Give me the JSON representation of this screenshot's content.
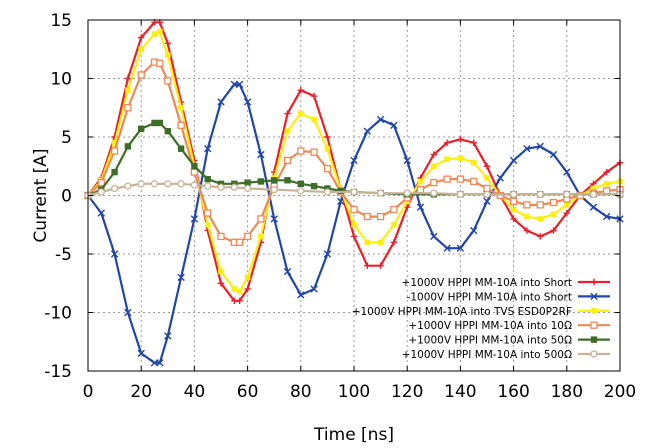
{
  "chart_data": {
    "type": "line",
    "title": "",
    "xlabel": "Time [ns]",
    "ylabel": "Current [A]",
    "xlim": [
      0,
      200
    ],
    "ylim": [
      -15,
      15
    ],
    "xticks": [
      0,
      20,
      40,
      60,
      80,
      100,
      120,
      140,
      160,
      180,
      200
    ],
    "yticks": [
      -15,
      -10,
      -5,
      0,
      5,
      10,
      15
    ],
    "grid": true,
    "legend_position": "bottom-right",
    "series": [
      {
        "name": "+1000V HPPI MM-10A into Short",
        "color": "#e8202a",
        "marker": "plus",
        "x": [
          0,
          5,
          10,
          15,
          20,
          25,
          27,
          30,
          35,
          40,
          45,
          50,
          55,
          57,
          60,
          65,
          70,
          75,
          80,
          85,
          90,
          95,
          100,
          105,
          110,
          115,
          120,
          125,
          130,
          135,
          140,
          145,
          150,
          155,
          160,
          165,
          170,
          175,
          180,
          185,
          190,
          195,
          200
        ],
        "y": [
          0,
          1.5,
          5,
          10,
          13.5,
          14.8,
          14.8,
          13,
          8,
          3,
          -3,
          -7.5,
          -9,
          -9,
          -8,
          -4,
          2,
          7,
          9,
          8.5,
          5,
          0.5,
          -3.5,
          -6,
          -6,
          -4,
          -1,
          1.5,
          3.5,
          4.5,
          4.8,
          4.5,
          2.5,
          0,
          -2,
          -3,
          -3.5,
          -3,
          -1.5,
          0,
          1,
          2,
          2.8
        ]
      },
      {
        "name": "-1000V HPPI MM-10A into Short",
        "color": "#2145a8",
        "marker": "x",
        "x": [
          0,
          5,
          10,
          15,
          20,
          25,
          27,
          30,
          35,
          40,
          45,
          50,
          55,
          57,
          60,
          65,
          70,
          75,
          80,
          85,
          90,
          95,
          100,
          105,
          110,
          115,
          120,
          125,
          130,
          135,
          140,
          145,
          150,
          155,
          160,
          165,
          170,
          175,
          180,
          185,
          190,
          195,
          200
        ],
        "y": [
          0,
          -1.5,
          -5,
          -10,
          -13.5,
          -14.3,
          -14.3,
          -12,
          -7,
          -2,
          4,
          8,
          9.5,
          9.5,
          8,
          3.5,
          -2,
          -6.5,
          -8.5,
          -8,
          -5,
          -0.5,
          3,
          5.5,
          6.5,
          6,
          3,
          -1,
          -3.5,
          -4.5,
          -4.5,
          -3,
          -0.5,
          1.5,
          3,
          4,
          4.2,
          3.5,
          2,
          0,
          -1,
          -1.8,
          -2
        ]
      },
      {
        "name": "+1000V HPPI MM-10A into TVS ESD0P2RF",
        "color": "#fcee0f",
        "marker": "square",
        "x": [
          0,
          5,
          10,
          15,
          20,
          25,
          27,
          30,
          35,
          40,
          45,
          50,
          55,
          57,
          60,
          65,
          70,
          75,
          80,
          85,
          90,
          95,
          100,
          105,
          110,
          115,
          120,
          125,
          130,
          135,
          140,
          145,
          150,
          155,
          160,
          165,
          170,
          175,
          180,
          185,
          190,
          195,
          200
        ],
        "y": [
          0,
          1.3,
          4.5,
          9,
          12.5,
          13.8,
          14,
          12,
          7.5,
          2.5,
          -2.5,
          -6.5,
          -8,
          -8.2,
          -7,
          -3.5,
          1.5,
          5.5,
          7,
          6.5,
          4,
          0.5,
          -2.5,
          -4,
          -4,
          -2.5,
          -0.5,
          1.2,
          2.5,
          3.1,
          3.2,
          2.8,
          1.5,
          0,
          -1.2,
          -1.8,
          -2,
          -1.6,
          -0.8,
          0,
          0.6,
          1,
          1.2
        ]
      },
      {
        "name": "+1000V HPPI MM-10A into 10Ω",
        "color": "#ee8855",
        "marker": "open-square",
        "x": [
          0,
          5,
          10,
          15,
          20,
          25,
          27,
          30,
          35,
          40,
          45,
          50,
          55,
          57,
          60,
          65,
          70,
          75,
          80,
          85,
          90,
          95,
          100,
          105,
          110,
          115,
          120,
          125,
          130,
          135,
          140,
          145,
          150,
          155,
          160,
          165,
          170,
          175,
          180,
          185,
          190,
          195,
          200
        ],
        "y": [
          0,
          1.1,
          3.8,
          7.5,
          10.3,
          11.4,
          11.3,
          9.8,
          6,
          2,
          -1.5,
          -3.5,
          -4,
          -4,
          -3.5,
          -2,
          0.8,
          3,
          3.8,
          3.7,
          2.3,
          0.3,
          -1.2,
          -1.8,
          -1.8,
          -1.2,
          -0.2,
          0.5,
          1.1,
          1.4,
          1.4,
          1.2,
          0.6,
          0,
          -0.5,
          -0.8,
          -0.8,
          -0.6,
          -0.3,
          0,
          0.2,
          0.4,
          0.5
        ]
      },
      {
        "name": "+1000V HPPI MM-10A into 50Ω",
        "color": "#3d6e27",
        "marker": "filled-square",
        "x": [
          0,
          5,
          10,
          15,
          20,
          25,
          27,
          30,
          35,
          40,
          45,
          50,
          55,
          60,
          65,
          70,
          75,
          80,
          85,
          90,
          95,
          100,
          110,
          120,
          130,
          140,
          150,
          160,
          170,
          180,
          190,
          200
        ],
        "y": [
          0,
          0.5,
          2,
          4.2,
          5.7,
          6.2,
          6.2,
          5.5,
          4,
          2.5,
          1.4,
          1,
          1,
          1.1,
          1.2,
          1.3,
          1.3,
          1,
          0.8,
          0.6,
          0.4,
          0.3,
          0.2,
          0.1,
          0.1,
          0.1,
          0.1,
          0.1,
          0.1,
          0.1,
          0.1,
          0.1
        ]
      },
      {
        "name": "+1000V HPPI MM-10A into 500Ω",
        "color": "#c9b398",
        "marker": "open-circle",
        "x": [
          0,
          5,
          10,
          15,
          20,
          25,
          30,
          35,
          40,
          45,
          50,
          55,
          60,
          70,
          80,
          90,
          100,
          110,
          120,
          130,
          140,
          150,
          160,
          170,
          180,
          190,
          200
        ],
        "y": [
          0,
          0.3,
          0.6,
          0.8,
          1,
          1,
          1,
          1,
          0.9,
          0.8,
          0.7,
          0.7,
          0.6,
          0.5,
          0.4,
          0.3,
          0.3,
          0.2,
          0.2,
          0.2,
          0.1,
          0.1,
          0.1,
          0.1,
          0.1,
          0.1,
          0.1
        ]
      }
    ]
  }
}
